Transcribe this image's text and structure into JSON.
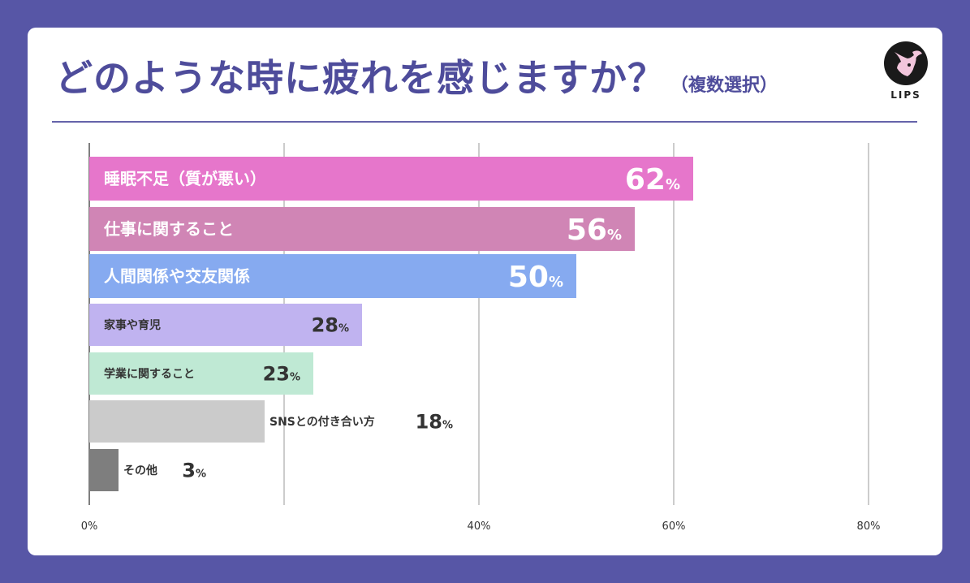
{
  "title": "どのような時に疲れを感じますか？",
  "subtitle": "（複数選択）",
  "logo": {
    "text": "LIPS",
    "icon": "deer-icon"
  },
  "chart_data": {
    "type": "bar",
    "orientation": "horizontal",
    "categories": [
      "睡眠不足（質が悪い）",
      "仕事に関すること",
      "人間関係や交友関係",
      "家事や育児",
      "学業に関すること",
      "SNSとの付き合い方",
      "その他"
    ],
    "values": [
      62,
      56,
      50,
      28,
      23,
      18,
      3
    ],
    "value_suffix": "%",
    "colors": [
      "#e676cb",
      "#d085b5",
      "#86aaf0",
      "#c0b3f0",
      "#bfe9d4",
      "#cbcbcb",
      "#7e7e7e"
    ],
    "xlim": [
      0,
      80
    ],
    "xticks": [
      0,
      40,
      60,
      80
    ],
    "xtick_labels": [
      "0%",
      "40%",
      "60%",
      "80%"
    ],
    "gridlines": [
      0,
      20,
      40,
      60,
      80
    ],
    "grid": true
  }
}
